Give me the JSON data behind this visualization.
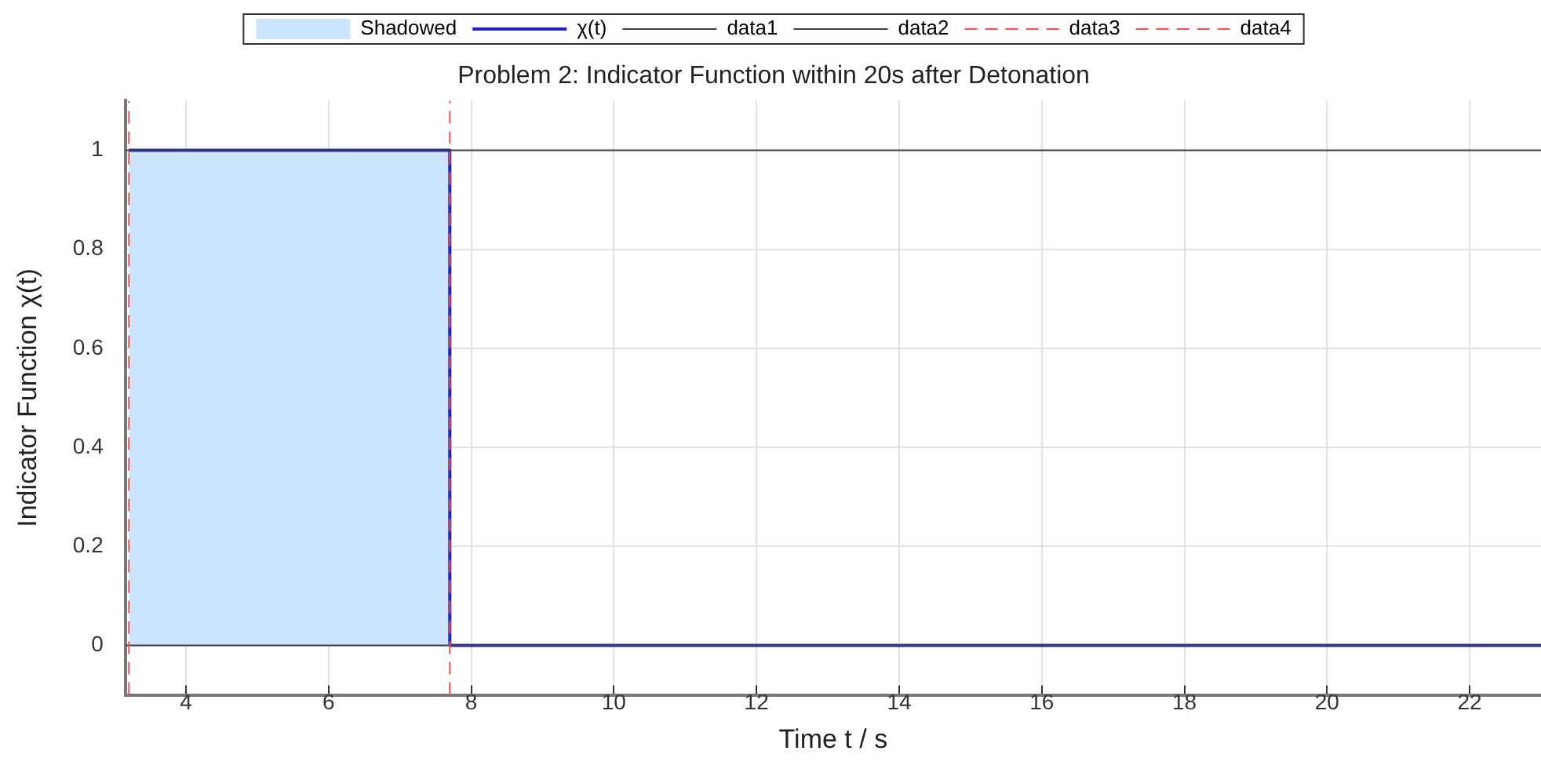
{
  "chart_data": {
    "type": "line",
    "title": "Problem 2: Indicator Function within 20s after Detonation",
    "xlabel": "Time t / s",
    "ylabel": "Indicator Function χ(t)",
    "xlim": [
      3.15,
      23
    ],
    "ylim": [
      -0.1,
      1.1
    ],
    "xticks": [
      4,
      6,
      8,
      10,
      12,
      14,
      16,
      18,
      20,
      22
    ],
    "yticks": [
      0,
      0.2,
      0.4,
      0.6,
      0.8,
      1
    ],
    "grid": true,
    "legend": "top",
    "marker": "none",
    "series": [
      {
        "name": "Shadowed",
        "type": "area",
        "color": "#cce5ff",
        "x": [
          3.2,
          7.7
        ],
        "values": [
          1,
          1
        ]
      },
      {
        "name": "χ(t)",
        "type": "line",
        "color": "#1f1fd6",
        "x": [
          3.2,
          7.7,
          7.7,
          23
        ],
        "values": [
          1,
          1,
          0,
          0
        ]
      },
      {
        "name": "data1",
        "type": "line",
        "color": "#404040",
        "x": [
          3.15,
          23
        ],
        "values": [
          1,
          1
        ]
      },
      {
        "name": "data2",
        "type": "line",
        "color": "#404040",
        "x": [
          3.15,
          23
        ],
        "values": [
          0,
          0
        ]
      },
      {
        "name": "data3",
        "type": "line",
        "color": "#ff4d4d",
        "line_style": "dashed",
        "x": [
          3.2,
          3.2
        ],
        "values": [
          -0.1,
          1.1
        ]
      },
      {
        "name": "data4",
        "type": "line",
        "color": "#ff4d4d",
        "line_style": "dashed",
        "x": [
          7.7,
          7.7
        ],
        "values": [
          -0.1,
          1.1
        ]
      }
    ]
  }
}
